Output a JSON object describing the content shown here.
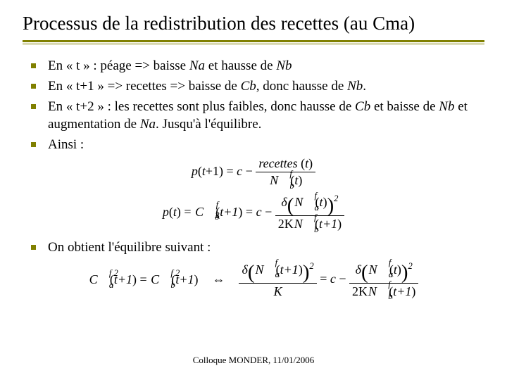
{
  "title": "Processus de la redistribution des recettes (au Cma)",
  "bullets": {
    "b1_pre": "En « t » : péage => baisse ",
    "b1_na": "Na",
    "b1_mid": " et hausse de ",
    "b1_nb": "Nb",
    "b2_pre": "En « t+1 » => recettes => baisse de ",
    "b2_cb": "Cb",
    "b2_mid": ", donc hausse de ",
    "b2_nb": "Nb",
    "b2_end": ".",
    "b3_pre": "En « t+2 » : les recettes sont plus faibles, donc hausse de ",
    "b3_cb": "Cb",
    "b3_mid": " et baisse de ",
    "b3_nb": "Nb",
    "b3_mid2": " et augmentation de ",
    "b3_na": "Na",
    "b3_end": ". Jusqu'à l'équilibre.",
    "b4": "Ainsi :",
    "b5": "On obtient l'équilibre suivant :"
  },
  "formula1": {
    "lhs": "p",
    "lhs_arg_open": "(",
    "lhs_arg": "t",
    "lhs_plus": "+1",
    "lhs_arg_close": ")",
    "eq": " = ",
    "c": "c",
    "minus": " − ",
    "num_word": "recettes",
    "num_arg": "t",
    "den_N": "N",
    "den_sup": "f",
    "den_sub": "b",
    "den_arg": "t"
  },
  "formula2": {
    "lhs": "p",
    "lhs_arg": "t",
    "eq": " = ",
    "C": "C",
    "C_sup": "f 2",
    "C_sub": "b",
    "C_arg": "t+1",
    "eq2": " = ",
    "c": "c",
    "minus": " − ",
    "delta": "δ",
    "num_N": "N",
    "num_sup": "f",
    "num_sub": "a",
    "num_arg": "t",
    "num_pow": "2",
    "den_2K": "2K",
    "den_N": "N",
    "den_sup": "f",
    "den_sub": "b",
    "den_arg": "t+1"
  },
  "formula3": {
    "left_Ca": "C",
    "left_Ca_sup": "f 2",
    "left_Ca_sub": "a",
    "left_arg": "t+1",
    "eq": " = ",
    "left_Cb": "C",
    "left_Cb_sup": "f 2",
    "left_Cb_sub": "b",
    "equiv": "⇔",
    "mid_delta": "δ",
    "mid_N": "N",
    "mid_sup": "f",
    "mid_sub": "a",
    "mid_arg": "t+1",
    "mid_pow": "2",
    "mid_den": "K",
    "right_c": "c",
    "right_minus": " − ",
    "right_delta": "δ",
    "right_N": "N",
    "right_sup": "f",
    "right_sub": "a",
    "right_arg": "t",
    "right_pow": "2",
    "right_2K": "2K",
    "right_Nb": "N",
    "right_Nb_sup": "f",
    "right_Nb_sub": "b",
    "right_Nb_arg": "t+1"
  },
  "footer": "Colloque MONDER, 11/01/2006",
  "colors": {
    "accent": "#808000",
    "text": "#000000",
    "background": "#ffffff"
  }
}
